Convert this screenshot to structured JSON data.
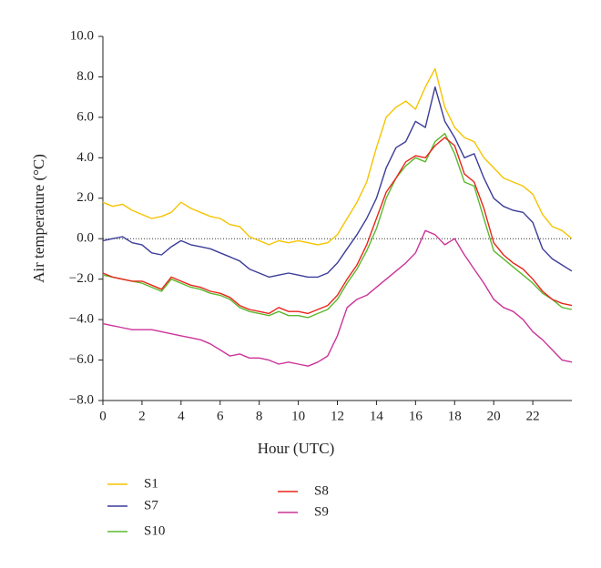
{
  "chart_data": {
    "type": "line",
    "xlabel": "Hour (UTC)",
    "ylabel": "Air temperature (°C)",
    "x": [
      0,
      0.5,
      1,
      1.5,
      2,
      2.5,
      3,
      3.5,
      4,
      4.5,
      5,
      5.5,
      6,
      6.5,
      7,
      7.5,
      8,
      8.5,
      9,
      9.5,
      10,
      10.5,
      11,
      11.5,
      12,
      12.5,
      13,
      13.5,
      14,
      14.5,
      15,
      15.5,
      16,
      16.5,
      17,
      17.5,
      18,
      18.5,
      19,
      19.5,
      20,
      20.5,
      21,
      21.5,
      22,
      22.5,
      23,
      23.5,
      24
    ],
    "series": [
      {
        "name": "S1",
        "color": "#f5c400",
        "values": [
          1.8,
          1.6,
          1.7,
          1.4,
          1.2,
          1.0,
          1.1,
          1.3,
          1.8,
          1.5,
          1.3,
          1.1,
          1.0,
          0.7,
          0.6,
          0.1,
          -0.1,
          -0.3,
          -0.1,
          -0.2,
          -0.1,
          -0.2,
          -0.3,
          -0.2,
          0.2,
          1.0,
          1.8,
          2.8,
          4.5,
          6.0,
          6.5,
          6.8,
          6.4,
          7.5,
          8.4,
          6.5,
          5.5,
          5.0,
          4.8,
          4.0,
          3.5,
          3.0,
          2.8,
          2.6,
          2.2,
          1.2,
          0.6,
          0.4,
          0.0
        ]
      },
      {
        "name": "S7",
        "color": "#3c3c9a",
        "values": [
          -0.1,
          0.0,
          0.1,
          -0.2,
          -0.3,
          -0.7,
          -0.8,
          -0.4,
          -0.1,
          -0.3,
          -0.4,
          -0.5,
          -0.7,
          -0.9,
          -1.1,
          -1.5,
          -1.7,
          -1.9,
          -1.8,
          -1.7,
          -1.8,
          -1.9,
          -1.9,
          -1.7,
          -1.2,
          -0.5,
          0.2,
          1.0,
          2.0,
          3.5,
          4.5,
          4.8,
          5.8,
          5.5,
          7.5,
          5.8,
          5.0,
          4.0,
          4.2,
          3.0,
          2.0,
          1.6,
          1.4,
          1.3,
          0.8,
          -0.5,
          -1.0,
          -1.3,
          -1.6
        ]
      },
      {
        "name": "S10",
        "color": "#5cb82e",
        "values": [
          -1.8,
          -1.9,
          -2.0,
          -2.1,
          -2.2,
          -2.4,
          -2.6,
          -2.0,
          -2.2,
          -2.4,
          -2.5,
          -2.7,
          -2.8,
          -3.0,
          -3.4,
          -3.6,
          -3.7,
          -3.8,
          -3.6,
          -3.8,
          -3.8,
          -3.9,
          -3.7,
          -3.5,
          -3.0,
          -2.2,
          -1.5,
          -0.6,
          0.5,
          2.0,
          3.0,
          3.6,
          4.0,
          3.8,
          4.8,
          5.2,
          4.2,
          2.8,
          2.6,
          1.0,
          -0.6,
          -1.0,
          -1.4,
          -1.8,
          -2.2,
          -2.7,
          -3.0,
          -3.4,
          -3.5
        ]
      },
      {
        "name": "S8",
        "color": "#e8261c",
        "values": [
          -1.7,
          -1.9,
          -2.0,
          -2.1,
          -2.1,
          -2.3,
          -2.5,
          -1.9,
          -2.1,
          -2.3,
          -2.4,
          -2.6,
          -2.7,
          -2.9,
          -3.3,
          -3.5,
          -3.6,
          -3.7,
          -3.4,
          -3.6,
          -3.6,
          -3.7,
          -3.5,
          -3.3,
          -2.8,
          -2.0,
          -1.3,
          -0.3,
          1.0,
          2.3,
          3.0,
          3.8,
          4.1,
          4.0,
          4.6,
          5.0,
          4.6,
          3.2,
          2.8,
          1.5,
          -0.2,
          -0.8,
          -1.2,
          -1.5,
          -2.0,
          -2.6,
          -3.0,
          -3.2,
          -3.3
        ]
      },
      {
        "name": "S9",
        "color": "#cc3399",
        "values": [
          -4.2,
          -4.3,
          -4.4,
          -4.5,
          -4.5,
          -4.5,
          -4.6,
          -4.7,
          -4.8,
          -4.9,
          -5.0,
          -5.2,
          -5.5,
          -5.8,
          -5.7,
          -5.9,
          -5.9,
          -6.0,
          -6.2,
          -6.1,
          -6.2,
          -6.3,
          -6.1,
          -5.8,
          -4.8,
          -3.4,
          -3.0,
          -2.8,
          -2.4,
          -2.0,
          -1.6,
          -1.2,
          -0.7,
          0.4,
          0.2,
          -0.3,
          0.0,
          -0.8,
          -1.5,
          -2.2,
          -3.0,
          -3.4,
          -3.6,
          -4.0,
          -4.6,
          -5.0,
          -5.5,
          -6.0,
          -6.1
        ]
      }
    ],
    "xlim": [
      0,
      24
    ],
    "xticks": [
      0,
      2,
      4,
      6,
      8,
      10,
      12,
      14,
      16,
      18,
      20,
      22
    ],
    "ylim": [
      -8,
      10
    ],
    "yticks": [
      {
        "value": 10,
        "label": "10.0"
      },
      {
        "value": 8,
        "label": "8.0"
      },
      {
        "value": 6,
        "label": "6.0"
      },
      {
        "value": 4,
        "label": "4.0"
      },
      {
        "value": 2,
        "label": "2.0"
      },
      {
        "value": 0,
        "label": "0.0"
      },
      {
        "value": -2,
        "label": "−2.0"
      },
      {
        "value": -4,
        "label": "−4.0"
      },
      {
        "value": -6,
        "label": "−6.0"
      },
      {
        "value": -8,
        "label": "−8.0"
      }
    ],
    "zero_line": 0
  }
}
